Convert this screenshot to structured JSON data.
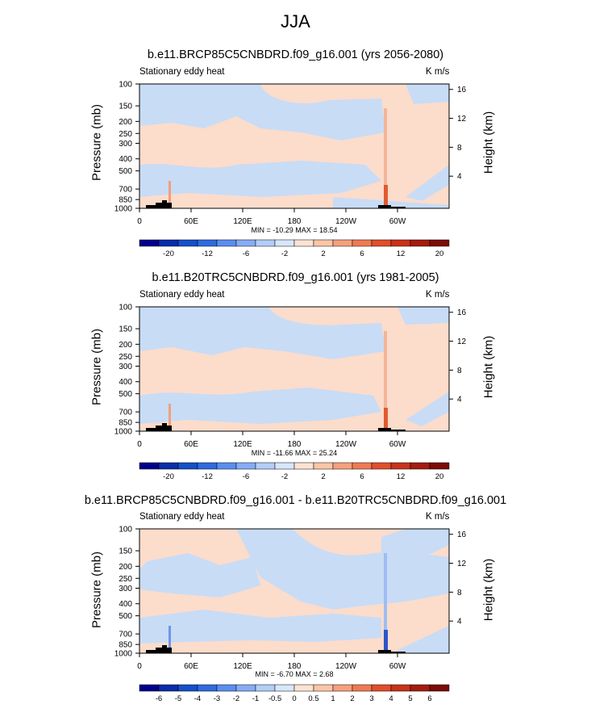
{
  "title": "JJA",
  "chart_data": [
    {
      "type": "heatmap",
      "title": "b.e11.BRCP85C5CNBDRD.f09_g16.001 (yrs 2056-2080)",
      "field_label": "Stationary eddy heat",
      "units": "K m/s",
      "ylabel": "Pressure (mb)",
      "ylabel_right": "Height (km)",
      "x_ticks": [
        "0",
        "60E",
        "120E",
        "180",
        "120W",
        "60W"
      ],
      "y_ticks": [
        "100",
        "150",
        "200",
        "250",
        "300",
        "400",
        "500",
        "700",
        "850",
        "1000"
      ],
      "y_ticks_right": [
        "16",
        "12",
        "8",
        "4"
      ],
      "stats": "MIN = -10.29  MAX = 18.54",
      "min": -10.29,
      "max": 18.54,
      "colorbar_labels": [
        "-20",
        "-12",
        "-6",
        "-2",
        "2",
        "6",
        "12",
        "20"
      ],
      "colorbar_colors": [
        "#00008b",
        "#0a2ea8",
        "#1450c8",
        "#2f6be0",
        "#5b8ef0",
        "#86acf5",
        "#b3cdf8",
        "#d8e6fb",
        "#fde2d2",
        "#fbc5a8",
        "#f7a07c",
        "#f07a52",
        "#e04f2a",
        "#c83218",
        "#a51c0e",
        "#7d0c06"
      ]
    },
    {
      "type": "heatmap",
      "title": "b.e11.B20TRC5CNBDRD.f09_g16.001 (yrs 1981-2005)",
      "field_label": "Stationary eddy heat",
      "units": "K m/s",
      "ylabel": "Pressure (mb)",
      "ylabel_right": "Height (km)",
      "x_ticks": [
        "0",
        "60E",
        "120E",
        "180",
        "120W",
        "60W"
      ],
      "y_ticks": [
        "100",
        "150",
        "200",
        "250",
        "300",
        "400",
        "500",
        "700",
        "850",
        "1000"
      ],
      "y_ticks_right": [
        "16",
        "12",
        "8",
        "4"
      ],
      "stats": "MIN = -11.66  MAX = 25.24",
      "min": -11.66,
      "max": 25.24,
      "colorbar_labels": [
        "-20",
        "-12",
        "-6",
        "-2",
        "2",
        "6",
        "12",
        "20"
      ],
      "colorbar_colors": [
        "#00008b",
        "#0a2ea8",
        "#1450c8",
        "#2f6be0",
        "#5b8ef0",
        "#86acf5",
        "#b3cdf8",
        "#d8e6fb",
        "#fde2d2",
        "#fbc5a8",
        "#f7a07c",
        "#f07a52",
        "#e04f2a",
        "#c83218",
        "#a51c0e",
        "#7d0c06"
      ]
    },
    {
      "type": "heatmap",
      "title": "b.e11.BRCP85C5CNBDRD.f09_g16.001 - b.e11.B20TRC5CNBDRD.f09_g16.001",
      "field_label": "Stationary eddy heat",
      "units": "K m/s",
      "ylabel": "Pressure (mb)",
      "ylabel_right": "Height (km)",
      "x_ticks": [
        "0",
        "60E",
        "120E",
        "180",
        "120W",
        "60W"
      ],
      "y_ticks": [
        "100",
        "150",
        "200",
        "250",
        "300",
        "400",
        "500",
        "700",
        "850",
        "1000"
      ],
      "y_ticks_right": [
        "16",
        "12",
        "8",
        "4"
      ],
      "stats": "MIN =  -6.70  MAX =   2.68",
      "min": -6.7,
      "max": 2.68,
      "colorbar_labels": [
        "-6",
        "-5",
        "-4",
        "-3",
        "-2",
        "-1",
        "-0.5",
        "0",
        "0.5",
        "1",
        "2",
        "3",
        "4",
        "5",
        "6"
      ],
      "colorbar_colors": [
        "#00008b",
        "#0a2ea8",
        "#1450c8",
        "#2f6be0",
        "#5b8ef0",
        "#86acf5",
        "#b3cdf8",
        "#d8e6fb",
        "#fde2d2",
        "#fbc5a8",
        "#f7a07c",
        "#f07a52",
        "#e04f2a",
        "#c83218",
        "#a51c0e",
        "#7d0c06"
      ]
    }
  ]
}
